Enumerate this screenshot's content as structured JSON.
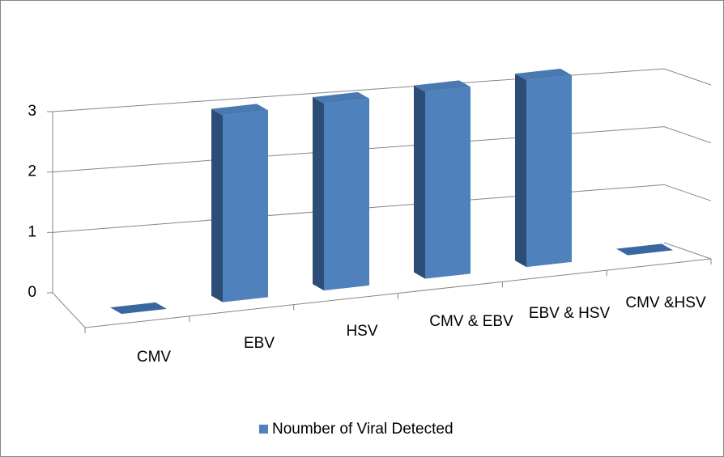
{
  "chart_data": {
    "type": "bar3d",
    "categories": [
      "CMV",
      "EBV",
      "HSV",
      "CMV & EBV",
      "EBV & HSV",
      "CMV &HSV"
    ],
    "series": [
      {
        "name": "Noumber of Viral Detected",
        "color": "#4f81bd",
        "values": [
          0,
          3,
          3,
          3,
          3,
          0
        ]
      }
    ],
    "ylim": [
      0,
      3
    ],
    "yticks": [
      0,
      1,
      2,
      3
    ],
    "grid": true,
    "legend": "bottom"
  }
}
